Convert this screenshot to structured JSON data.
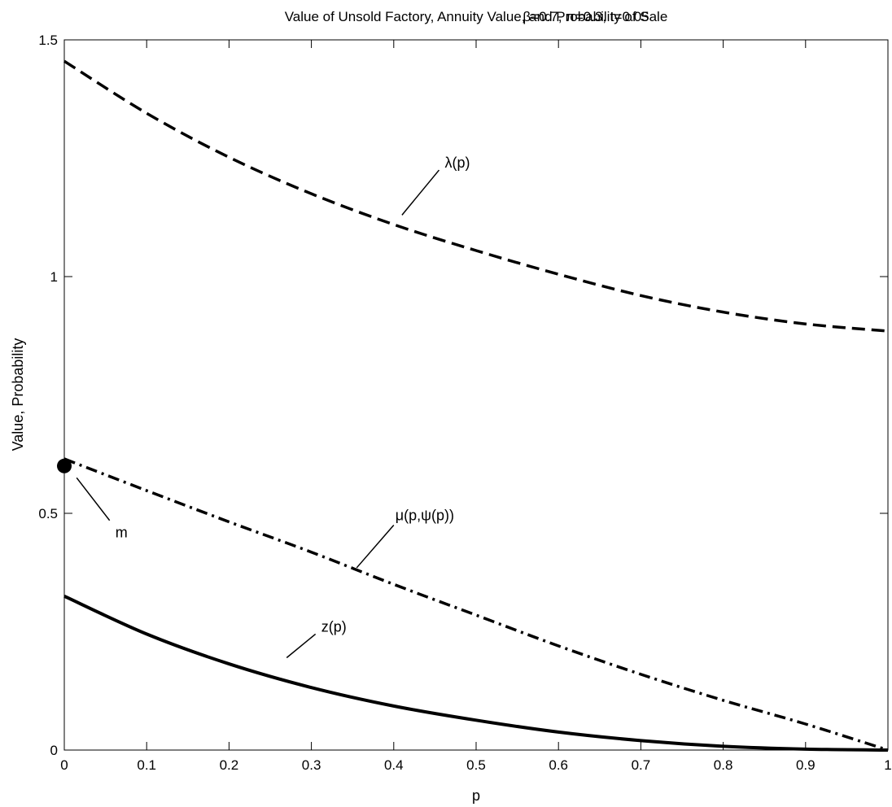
{
  "chart_data": {
    "type": "line",
    "title": "Value of Unsold Factory, Annuity Value, and Probability of Sale",
    "subtitle": "β=0.7, π=0.3, t=0.05",
    "xlabel": "p",
    "ylabel": "Value, Probability",
    "xlim": [
      0,
      1
    ],
    "ylim": [
      0,
      1.5
    ],
    "xticks": [
      "0",
      "0.1",
      "0.2",
      "0.3",
      "0.4",
      "0.5",
      "0.6",
      "0.7",
      "0.8",
      "0.9",
      "1"
    ],
    "yticks": [
      "0",
      "0.5",
      "1",
      "1.5"
    ],
    "grid": false,
    "legend": "none",
    "series": [
      {
        "label": "λ(p)",
        "style": "dashed",
        "x": [
          0,
          0.1,
          0.2,
          0.3,
          0.4,
          0.5,
          0.6,
          0.7,
          0.8,
          0.9,
          1.0
        ],
        "y": [
          1.455,
          1.345,
          1.252,
          1.175,
          1.11,
          1.055,
          1.005,
          0.96,
          0.925,
          0.9,
          0.885
        ]
      },
      {
        "label": "μ(p,ψ(p))",
        "style": "dashdot",
        "x": [
          0,
          0.1,
          0.2,
          0.3,
          0.4,
          0.5,
          0.6,
          0.7,
          0.8,
          0.9,
          1.0
        ],
        "y": [
          0.615,
          0.548,
          0.482,
          0.418,
          0.35,
          0.285,
          0.22,
          0.16,
          0.105,
          0.055,
          0.0
        ]
      },
      {
        "label": "z(p)",
        "style": "solid",
        "x": [
          0,
          0.1,
          0.2,
          0.3,
          0.4,
          0.5,
          0.6,
          0.7,
          0.8,
          0.9,
          1.0
        ],
        "y": [
          0.325,
          0.245,
          0.182,
          0.132,
          0.093,
          0.063,
          0.038,
          0.02,
          0.008,
          0.002,
          0.0
        ]
      }
    ],
    "annotations": [
      {
        "text": "λ(p)",
        "x": 0.46,
        "y": 1.23
      },
      {
        "text": "μ(p,ψ(p))",
        "x": 0.4,
        "y": 0.485
      },
      {
        "text": "z(p)",
        "x": 0.31,
        "y": 0.25
      },
      {
        "text": "m",
        "x": 0.06,
        "y": 0.48
      }
    ],
    "marker": {
      "label": "m",
      "x": 0.0,
      "y": 0.6
    }
  }
}
